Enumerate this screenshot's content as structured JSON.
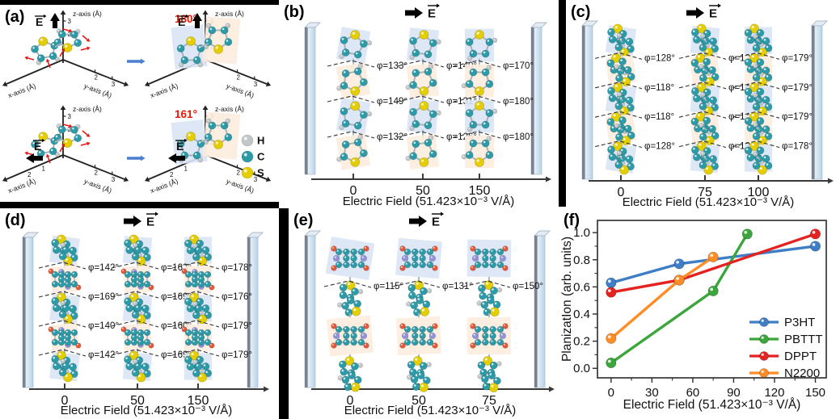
{
  "colors": {
    "atom_c": "#2d9aa8",
    "atom_s": "#e4cd00",
    "atom_h": "#c3c6c9",
    "atom_o": "#e25839",
    "atom_n": "#9191dc",
    "plane_blue": "#d9e4f4",
    "plane_peach": "#fcecdd",
    "bond": "#a9b3ba",
    "angle_red": "#ee1605",
    "arrow_blue": "#4a7fd0",
    "electrode_edge": "#79838f",
    "axis": "#3a3a3a"
  },
  "panels": {
    "a": {
      "label": "(a)",
      "axis_z": "z-axis (Å)",
      "axis_y": "y-axis (Å)",
      "axis_x": "x-axis (Å)",
      "z_ticks": [
        "1",
        "2",
        "3"
      ],
      "y_ticks": [
        "2",
        "3"
      ],
      "x_ticks": [
        "1",
        "2",
        "3"
      ],
      "field_label": "E",
      "angle_top": "180°",
      "angle_bottom": "161°",
      "legend": [
        {
          "label": "H",
          "color": "#c3c6c9"
        },
        {
          "label": "C",
          "color": "#2d9aa8"
        },
        {
          "label": "S",
          "color": "#e4cd00"
        }
      ]
    },
    "b": {
      "label": "(b)",
      "field_label": "E",
      "xlabel": "Electric Field (51.423×10⁻³ V/Å)",
      "columns": [
        {
          "tick": "0",
          "angles": [
            "φ=133°",
            "φ=149°",
            "φ=132°"
          ]
        },
        {
          "tick": "50",
          "angles": [
            "φ=140°",
            "φ=131°",
            "φ=126°"
          ]
        },
        {
          "tick": "150",
          "angles": [
            "φ=170°",
            "φ=180°",
            "φ=180°"
          ]
        }
      ]
    },
    "c": {
      "label": "(c)",
      "field_label": "E",
      "xlabel": "Electric Field (51.423×10⁻³ V/Å)",
      "columns": [
        {
          "tick": "0",
          "angles": [
            "φ=128°",
            "φ=118°",
            "φ=118°",
            "φ=128°"
          ]
        },
        {
          "tick": "75",
          "angles": [
            "φ=125°",
            "φ=141°",
            "φ=142°",
            "φ=130°"
          ]
        },
        {
          "tick": "100",
          "angles": [
            "φ=179°",
            "φ=179°",
            "φ=179°",
            "φ=178°"
          ]
        }
      ]
    },
    "d": {
      "label": "(d)",
      "field_label": "E",
      "xlabel": "Electric Field (51.423×10⁻³ V/Å)",
      "columns": [
        {
          "tick": "0",
          "angles": [
            "φ=142°",
            "φ=169°",
            "φ=140°",
            "φ=142°"
          ]
        },
        {
          "tick": "50",
          "angles": [
            "φ=163°",
            "φ=169°",
            "φ=160°",
            "φ=169°"
          ]
        },
        {
          "tick": "150",
          "angles": [
            "φ=178°",
            "φ=176°",
            "φ=179°",
            "φ=179°"
          ]
        }
      ]
    },
    "e": {
      "label": "(e)",
      "field_label": "E",
      "xlabel": "Electric Field (51.423×10⁻³ V/Å)",
      "columns": [
        {
          "tick": "0",
          "angles": [
            "φ=115°"
          ]
        },
        {
          "tick": "50",
          "angles": [
            "φ=131°"
          ]
        },
        {
          "tick": "75",
          "angles": [
            "φ=150°"
          ]
        }
      ]
    },
    "f": {
      "label": "(f)",
      "chart_data": {
        "type": "line",
        "title": "",
        "xlabel": "Electric Field (51.423×10⁻³ V/Å)",
        "ylabel": "PlanizatIon (arb. units)",
        "xlim": [
          -10,
          158
        ],
        "ylim": [
          -0.07,
          1.09
        ],
        "xticks": [
          0,
          30,
          60,
          90,
          120,
          150
        ],
        "yticks": [
          0.0,
          0.2,
          0.4,
          0.6,
          0.8,
          1.0
        ],
        "grid": false,
        "legend_position": "lower right",
        "series": [
          {
            "name": "P3HT",
            "color": "#3d7ec6",
            "x": [
              0,
              50,
              150
            ],
            "y": [
              0.63,
              0.77,
              0.9
            ]
          },
          {
            "name": "PBTTT",
            "color": "#3ca63c",
            "x": [
              0,
              75,
              100
            ],
            "y": [
              0.04,
              0.57,
              0.99
            ]
          },
          {
            "name": "DPPT",
            "color": "#e42320",
            "x": [
              0,
              50,
              150
            ],
            "y": [
              0.56,
              0.65,
              0.99
            ]
          },
          {
            "name": "N2200",
            "color": "#ff8c25",
            "x": [
              0,
              50,
              75
            ],
            "y": [
              0.22,
              0.65,
              0.82
            ]
          }
        ]
      }
    }
  }
}
